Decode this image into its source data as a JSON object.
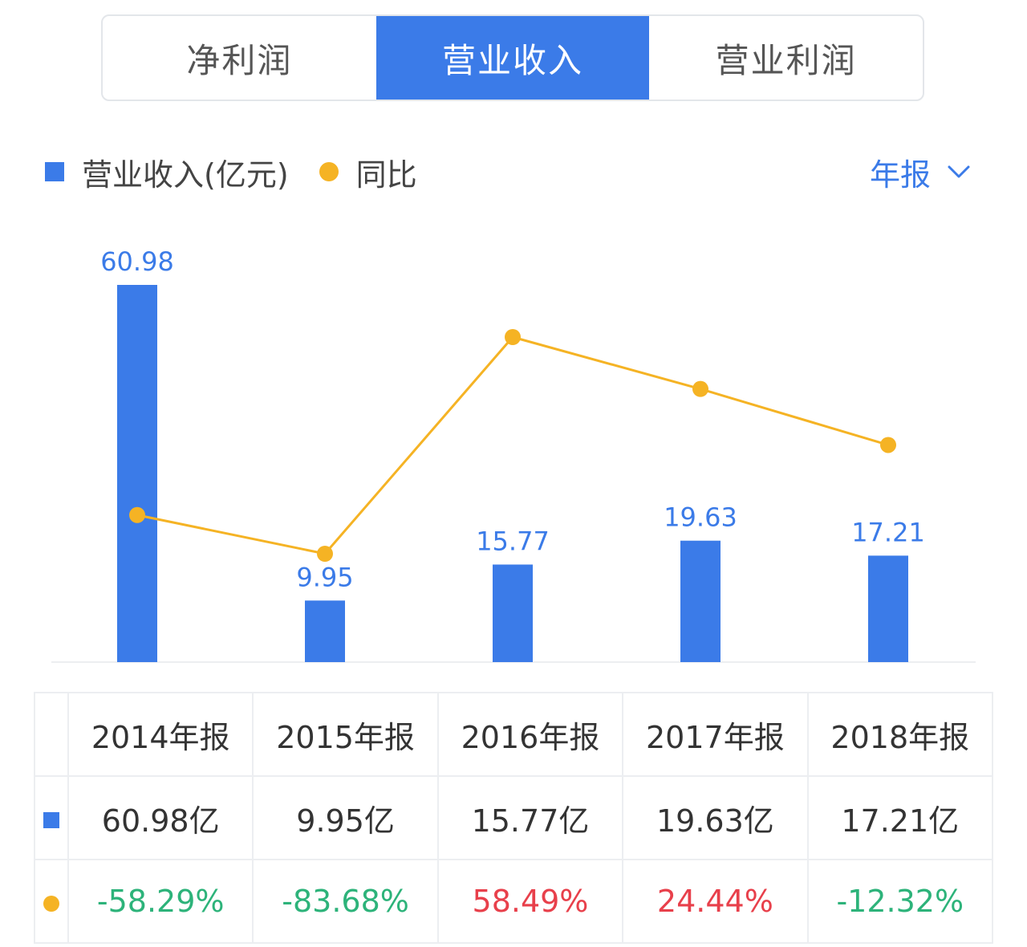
{
  "tabs": [
    {
      "label": "净利润",
      "active": false
    },
    {
      "label": "营业收入",
      "active": true
    },
    {
      "label": "营业利润",
      "active": false
    }
  ],
  "legend": {
    "bar_label": "营业收入(亿元)",
    "line_label": "同比"
  },
  "period_select": {
    "value": "年报",
    "icon": "chevron-down-icon"
  },
  "colors": {
    "accent": "#3b7be8",
    "line": "#f5b324",
    "negative": "#2db37a",
    "positive": "#e8404b"
  },
  "chart_data": {
    "type": "bar",
    "categories": [
      "2014年报",
      "2015年报",
      "2016年报",
      "2017年报",
      "2018年报"
    ],
    "series": [
      {
        "name": "营业收入(亿元)",
        "kind": "bar",
        "values": [
          60.98,
          9.95,
          15.77,
          19.63,
          17.21
        ]
      },
      {
        "name": "同比",
        "kind": "line",
        "values": [
          -58.29,
          -83.68,
          58.49,
          24.44,
          -12.32
        ]
      }
    ],
    "bar_labels": [
      "60.98",
      "9.95",
      "15.77",
      "19.63",
      "17.21"
    ],
    "grid": false,
    "legend_position": "top-left"
  },
  "table": {
    "headers": [
      "2014年报",
      "2015年报",
      "2016年报",
      "2017年报",
      "2018年报"
    ],
    "revenue": [
      "60.98亿",
      "9.95亿",
      "15.77亿",
      "19.63亿",
      "17.21亿"
    ],
    "yoy": [
      "-58.29%",
      "-83.68%",
      "58.49%",
      "24.44%",
      "-12.32%"
    ]
  }
}
